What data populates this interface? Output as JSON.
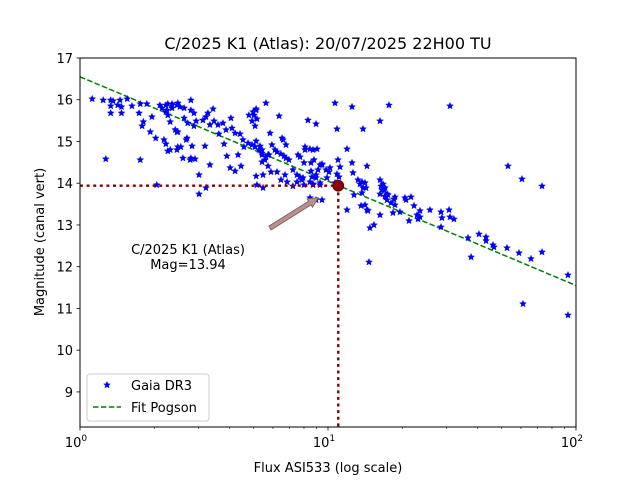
{
  "chart_data": {
    "type": "scatter",
    "title": "C/2025 K1 (Atlas): 20/07/2025 22H00 TU",
    "xlabel": "Flux ASI533 (log scale)",
    "ylabel": "Magnitude (canal vert)",
    "xscale": "log",
    "xlim": [
      1,
      100
    ],
    "ylim": [
      8.16,
      17
    ],
    "xticks": [
      {
        "value": 1,
        "base": "10",
        "exp": "0"
      },
      {
        "value": 10,
        "base": "10",
        "exp": "1"
      },
      {
        "value": 100,
        "base": "10",
        "exp": "2"
      }
    ],
    "yticks": [
      9,
      10,
      11,
      12,
      13,
      14,
      15,
      16,
      17
    ],
    "grid": false,
    "legend": {
      "placement": "lower-left",
      "entries": [
        {
          "label": "Gaia DR3",
          "marker": "star",
          "color": "#0000ff"
        },
        {
          "label": "Fit Pogson",
          "style": "dashed",
          "color": "#008000"
        }
      ]
    },
    "series": [
      {
        "name": "Gaia DR3",
        "color": "#0000ff",
        "marker": "star",
        "points": [
          [
            1.12,
            16.02
          ],
          [
            1.24,
            15.99
          ],
          [
            1.33,
            15.99
          ],
          [
            1.36,
            15.97
          ],
          [
            1.45,
            15.99
          ],
          [
            1.55,
            16.02
          ],
          [
            1.33,
            15.85
          ],
          [
            1.42,
            15.87
          ],
          [
            1.47,
            15.83
          ],
          [
            1.33,
            15.68
          ],
          [
            1.47,
            15.68
          ],
          [
            1.62,
            15.85
          ],
          [
            1.75,
            15.9
          ],
          [
            1.86,
            15.9
          ],
          [
            1.73,
            15.68
          ],
          [
            1.78,
            15.37
          ],
          [
            1.8,
            15.47
          ],
          [
            1.95,
            15.59
          ],
          [
            1.92,
            15.23
          ],
          [
            2.1,
            15.87
          ],
          [
            2.02,
            15.08
          ],
          [
            1.27,
            14.58
          ],
          [
            1.75,
            14.56
          ],
          [
            2.04,
            13.96
          ],
          [
            2.22,
            15.71
          ],
          [
            2.14,
            15.8
          ],
          [
            2.26,
            15.9
          ],
          [
            2.35,
            15.8
          ],
          [
            2.18,
            15.04
          ],
          [
            2.22,
            14.94
          ],
          [
            2.31,
            14.8
          ],
          [
            2.46,
            14.8
          ],
          [
            2.48,
            15.23
          ],
          [
            2.46,
            15.87
          ],
          [
            2.63,
            15.56
          ],
          [
            2.72,
            15.44
          ],
          [
            2.88,
            15.37
          ],
          [
            2.94,
            15.49
          ],
          [
            2.7,
            15.08
          ],
          [
            2.55,
            14.87
          ],
          [
            2.6,
            14.6
          ],
          [
            2.78,
            14.56
          ],
          [
            2.91,
            14.58
          ],
          [
            2.22,
            15.87
          ],
          [
            2.24,
            15.75
          ],
          [
            2.26,
            15.63
          ],
          [
            2.35,
            15.9
          ],
          [
            2.48,
            15.92
          ],
          [
            2.53,
            15.83
          ],
          [
            2.63,
            15.8
          ],
          [
            2.8,
            15.99
          ],
          [
            2.8,
            15.75
          ],
          [
            2.88,
            15.68
          ],
          [
            2.31,
            15.47
          ],
          [
            2.42,
            15.28
          ],
          [
            2.46,
            15.23
          ],
          [
            2.68,
            15.04
          ],
          [
            2.26,
            14.77
          ],
          [
            2.48,
            14.87
          ],
          [
            2.83,
            14.89
          ],
          [
            2.8,
            14.6
          ],
          [
            3.13,
            15.51
          ],
          [
            3.22,
            15.59
          ],
          [
            3.28,
            15.68
          ],
          [
            3.44,
            15.78
          ],
          [
            3.47,
            15.49
          ],
          [
            3.34,
            15.4
          ],
          [
            3.6,
            15.4
          ],
          [
            3.63,
            15.18
          ],
          [
            3.77,
            15.44
          ],
          [
            3.88,
            15.28
          ],
          [
            4.06,
            15.56
          ],
          [
            4.1,
            15.32
          ],
          [
            4.22,
            15.2
          ],
          [
            4.42,
            15.18
          ],
          [
            4.54,
            15.04
          ],
          [
            4.58,
            14.87
          ],
          [
            4.76,
            14.96
          ],
          [
            4.94,
            14.92
          ],
          [
            5.08,
            14.87
          ],
          [
            5.27,
            14.8
          ],
          [
            5.42,
            14.72
          ],
          [
            5.73,
            14.68
          ],
          [
            5.08,
            15.37
          ],
          [
            4.8,
            15.63
          ],
          [
            4.99,
            15.71
          ],
          [
            5.13,
            15.78
          ],
          [
            5.62,
            14.63
          ],
          [
            5.57,
            14.56
          ],
          [
            5.78,
            14.68
          ],
          [
            3.81,
            14.94
          ],
          [
            3.91,
            14.65
          ],
          [
            3.19,
            14.89
          ],
          [
            4.34,
            14.68
          ],
          [
            5.42,
            14.51
          ],
          [
            5.47,
            14.2
          ],
          [
            3.02,
            14.2
          ],
          [
            3.34,
            14.44
          ],
          [
            4.03,
            14.37
          ],
          [
            4.22,
            14.29
          ],
          [
            3.22,
            13.89
          ],
          [
            3.02,
            13.74
          ],
          [
            4.46,
            14.41
          ],
          [
            5.17,
            13.96
          ],
          [
            5.62,
            15.92
          ],
          [
            5.13,
            15.75
          ],
          [
            5.03,
            15.63
          ],
          [
            5.17,
            15.54
          ],
          [
            4.94,
            15.49
          ],
          [
            6.35,
            15.61
          ],
          [
            8.3,
            15.51
          ],
          [
            8.95,
            15.42
          ],
          [
            5.84,
            15.2
          ],
          [
            6.53,
            15.08
          ],
          [
            6.59,
            15.04
          ],
          [
            6.77,
            14.92
          ],
          [
            5.13,
            15.01
          ],
          [
            5.32,
            14.89
          ],
          [
            5.42,
            14.8
          ],
          [
            5.94,
            14.92
          ],
          [
            6.11,
            14.8
          ],
          [
            6.23,
            14.75
          ],
          [
            6.46,
            14.7
          ],
          [
            6.65,
            14.65
          ],
          [
            6.77,
            14.6
          ],
          [
            6.96,
            14.56
          ],
          [
            7.57,
            14.68
          ],
          [
            7.71,
            14.63
          ],
          [
            8.08,
            14.8
          ],
          [
            8.7,
            14.8
          ],
          [
            8.78,
            14.56
          ],
          [
            8.95,
            14.2
          ],
          [
            9.29,
            14.01
          ],
          [
            9.91,
            14.13
          ],
          [
            9.12,
            14.32
          ],
          [
            9.29,
            14.44
          ],
          [
            8.62,
            14.15
          ],
          [
            9.29,
            13.96
          ],
          [
            8.0,
            14.49
          ],
          [
            7.85,
            14.08
          ],
          [
            7.5,
            14.03
          ],
          [
            7.22,
            14.32
          ],
          [
            8.0,
            13.96
          ],
          [
            7.5,
            14.2
          ],
          [
            5.42,
            14.68
          ],
          [
            5.13,
            14.17
          ],
          [
            5.47,
            13.89
          ],
          [
            5.73,
            14.41
          ],
          [
            5.89,
            14.27
          ],
          [
            6.23,
            14.27
          ],
          [
            6.71,
            14.2
          ],
          [
            7.22,
            13.93
          ],
          [
            6.46,
            14.08
          ],
          [
            6.84,
            14.03
          ],
          [
            8.46,
            14.03
          ],
          [
            8.95,
            14.13
          ],
          [
            8.46,
            13.65
          ],
          [
            8.95,
            13.6
          ],
          [
            8.7,
            13.98
          ],
          [
            8.54,
            14.29
          ],
          [
            10.09,
            14.27
          ],
          [
            9.46,
            14.44
          ],
          [
            7.71,
            14.15
          ],
          [
            9.82,
            14.32
          ],
          [
            8.7,
            13.96
          ],
          [
            7.93,
            14.13
          ],
          [
            10.67,
            15.92
          ],
          [
            12.5,
            15.83
          ],
          [
            17.61,
            15.87
          ],
          [
            10.87,
            15.3
          ],
          [
            13.84,
            15.3
          ],
          [
            16.21,
            15.49
          ],
          [
            8.08,
            14.87
          ],
          [
            11.93,
            14.82
          ],
          [
            8.46,
            14.82
          ],
          [
            9.03,
            14.82
          ],
          [
            8.54,
            14.49
          ],
          [
            9.46,
            14.46
          ],
          [
            10.19,
            14.37
          ],
          [
            10.97,
            14.56
          ],
          [
            11.18,
            14.39
          ],
          [
            10.87,
            14.22
          ],
          [
            11.07,
            14.15
          ],
          [
            10.67,
            14.01
          ],
          [
            12.61,
            14.25
          ],
          [
            12.5,
            14.49
          ],
          [
            14.36,
            14.41
          ],
          [
            12.73,
            13.72
          ],
          [
            13.21,
            14.08
          ],
          [
            13.46,
            13.98
          ],
          [
            13.71,
            14.03
          ],
          [
            14.1,
            14.01
          ],
          [
            13.84,
            13.89
          ],
          [
            14.23,
            13.89
          ],
          [
            16.21,
            14.08
          ],
          [
            16.66,
            13.98
          ],
          [
            16.82,
            13.84
          ],
          [
            16.21,
            13.74
          ],
          [
            17.13,
            13.67
          ],
          [
            16.97,
            13.69
          ],
          [
            18.62,
            13.67
          ],
          [
            17.29,
            13.6
          ],
          [
            17.94,
            13.53
          ],
          [
            18.28,
            13.29
          ],
          [
            18.62,
            13.48
          ],
          [
            13.71,
            13.77
          ],
          [
            14.1,
            13.48
          ],
          [
            14.36,
            13.36
          ],
          [
            14.49,
            13.34
          ],
          [
            13.59,
            13.46
          ],
          [
            11.93,
            13.36
          ],
          [
            16.21,
            13.24
          ],
          [
            15.32,
            13.0
          ],
          [
            9.46,
            13.6
          ],
          [
            14.76,
            12.93
          ],
          [
            14.63,
            12.11
          ],
          [
            16.36,
            13.93
          ],
          [
            16.51,
            13.84
          ],
          [
            16.97,
            13.89
          ],
          [
            17.29,
            13.74
          ],
          [
            17.45,
            13.72
          ],
          [
            18.45,
            13.62
          ],
          [
            20.43,
            13.65
          ],
          [
            20.63,
            13.6
          ],
          [
            21.61,
            13.67
          ],
          [
            22.23,
            13.46
          ],
          [
            22.86,
            13.24
          ],
          [
            23.49,
            13.34
          ],
          [
            23.07,
            13.14
          ],
          [
            23.49,
            13.19
          ],
          [
            21.22,
            13.1
          ],
          [
            19.5,
            13.31
          ],
          [
            25.77,
            13.36
          ],
          [
            28.55,
            13.31
          ],
          [
            28.81,
            13.17
          ],
          [
            30.76,
            13.36
          ],
          [
            28.55,
            12.95
          ],
          [
            31.04,
            15.85
          ],
          [
            31.04,
            13.19
          ],
          [
            32.2,
            13.14
          ],
          [
            36.7,
            12.69
          ],
          [
            37.76,
            12.23
          ],
          [
            40.63,
            12.78
          ],
          [
            43.37,
            12.71
          ],
          [
            43.37,
            12.62
          ],
          [
            46.26,
            12.52
          ],
          [
            46.69,
            12.47
          ],
          [
            52.69,
            12.45
          ],
          [
            53.17,
            14.41
          ],
          [
            58.9,
            12.33
          ],
          [
            60.57,
            14.1
          ],
          [
            65.84,
            12.19
          ],
          [
            72.95,
            12.35
          ],
          [
            72.95,
            13.93
          ],
          [
            61.13,
            11.11
          ],
          [
            92.84,
            11.8
          ],
          [
            92.84,
            10.84
          ]
        ]
      },
      {
        "name": "Fit Pogson",
        "color": "#008000",
        "style": "dashed",
        "intercept": 16.55,
        "slope_per_decade": -2.5
      }
    ],
    "target": {
      "name": "C/2025 K1 (Atlas)",
      "flux": 11.0,
      "mag": 13.94,
      "color": "#8b0000"
    },
    "annotations": [
      {
        "text_lines": [
          "C/2025 K1 (Atlas)",
          "Mag=13.94"
        ],
        "arrow_color": "#bc8f8f",
        "points_to": "target"
      }
    ]
  }
}
